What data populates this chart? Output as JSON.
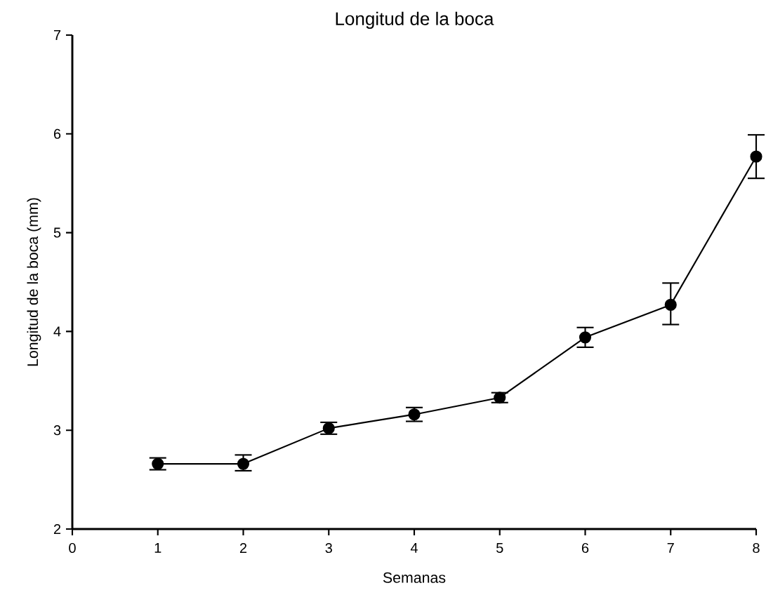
{
  "chart_data": {
    "type": "line",
    "title": "Longitud de la boca",
    "xlabel": "Semanas",
    "ylabel": "Longitud de la boca (mm)",
    "x": [
      1,
      2,
      3,
      4,
      5,
      6,
      7,
      8
    ],
    "series": [
      {
        "color": "#000000",
        "values": [
          2.66,
          2.66,
          3.02,
          3.16,
          3.33,
          3.94,
          4.27,
          5.77
        ],
        "errors": [
          [
            2.6,
            2.72
          ],
          [
            2.59,
            2.75
          ],
          [
            2.96,
            3.08
          ],
          [
            3.09,
            3.23
          ],
          [
            3.28,
            3.38
          ],
          [
            3.84,
            4.04
          ],
          [
            4.07,
            4.49
          ],
          [
            5.55,
            5.99
          ]
        ]
      }
    ],
    "xlim": [
      0,
      8
    ],
    "xticks": [
      0,
      1,
      2,
      3,
      4,
      5,
      6,
      7,
      8
    ],
    "ylim": [
      2,
      7
    ],
    "yticks": [
      2,
      3,
      4,
      5,
      6,
      7
    ],
    "marker": "circle",
    "line_style": "solid"
  }
}
